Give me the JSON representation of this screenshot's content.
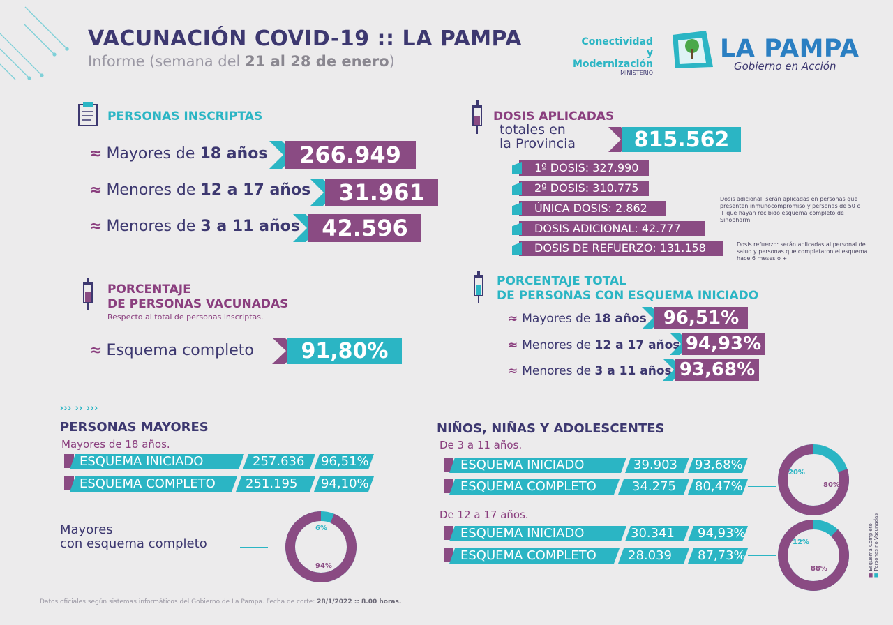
{
  "header": {
    "title": "VACUNACIÓN COVID-19 :: LA PAMPA",
    "subtitle_prefix": "Informe (semana del ",
    "subtitle_dates": "21 al 28 de enero",
    "subtitle_suffix": ")",
    "ministry_line1": "Conectividad y",
    "ministry_line2": "Modernización",
    "ministry_line3": "MINISTERIO",
    "brand": "LA PAMPA",
    "brand_tagline": "Gobierno en Acción"
  },
  "inscriptas": {
    "title": "PERSONAS INSCRIPTAS",
    "rows": [
      {
        "label_pre": "Mayores de ",
        "label_bold": "18 años",
        "value": "266.949"
      },
      {
        "label_pre": "Menores de ",
        "label_bold": "12 a 17 años",
        "value": "31.961"
      },
      {
        "label_pre": "Menores de ",
        "label_bold": "3 a 11 años",
        "value": "42.596"
      }
    ]
  },
  "dosis": {
    "title": "DOSIS APLICADAS",
    "sub1": "totales en",
    "sub2": "la Provincia",
    "total": "815.562",
    "items": [
      "1º DOSIS: 327.990",
      "2º DOSIS: 310.775",
      "ÚNICA DOSIS: 2.862",
      "DOSIS ADICIONAL: 42.777",
      "DOSIS DE REFUERZO: 131.158"
    ],
    "note_adicional": "Dosis adicional: serán aplicadas en personas que presenten inmunocompromiso y personas de 50 o + que hayan recibido esquema completo de Sinopharm.",
    "note_refuerzo": "Dosis refuerzo: serán aplicadas al personal de salud y personas que completaron el esquema hace 6 meses o +."
  },
  "porcentaje_vacunadas": {
    "title1": "PORCENTAJE",
    "title2": "DE PERSONAS VACUNADAS",
    "subtitle": "Respecto al total de personas inscriptas.",
    "label": "Esquema completo",
    "value": "91,80%"
  },
  "porcentaje_iniciado": {
    "title1": "PORCENTAJE TOTAL",
    "title2": "DE PERSONAS CON ESQUEMA INICIADO",
    "rows": [
      {
        "label_pre": "Mayores de ",
        "label_bold": "18 años",
        "value": "96,51%"
      },
      {
        "label_pre": "Menores de ",
        "label_bold": "12 a 17 años",
        "value": "94,93%"
      },
      {
        "label_pre": "Menores de ",
        "label_bold": "3 a 11 años",
        "value": "93,68%"
      }
    ]
  },
  "arrows": "››› ›› ›››",
  "mayores": {
    "title": "PERSONAS MAYORES",
    "subtitle": "Mayores de 18 años.",
    "rows": [
      {
        "label": "ESQUEMA INICIADO",
        "count": "257.636",
        "pct": "96,51%"
      },
      {
        "label": "ESQUEMA COMPLETO",
        "count": "251.195",
        "pct": "94,10%"
      }
    ],
    "donut_label1": "Mayores",
    "donut_label2": "con esquema completo",
    "donut": {
      "small": "6%",
      "large": "94%",
      "fraction": 0.94
    }
  },
  "ninos": {
    "title": "NIÑOS, NIÑAS Y ADOLESCENTES",
    "group1": {
      "subtitle": "De 3 a 11 años.",
      "rows": [
        {
          "label": "ESQUEMA INICIADO",
          "count": "39.903",
          "pct": "93,68%"
        },
        {
          "label": "ESQUEMA COMPLETO",
          "count": "34.275",
          "pct": "80,47%"
        }
      ],
      "donut": {
        "small": "20%",
        "large": "80%",
        "fraction": 0.8
      }
    },
    "group2": {
      "subtitle": "De 12 a 17 años.",
      "rows": [
        {
          "label": "ESQUEMA INICIADO",
          "count": "30.341",
          "pct": "94,93%"
        },
        {
          "label": "ESQUEMA COMPLETO",
          "count": "28.039",
          "pct": "87,73%"
        }
      ],
      "donut": {
        "small": "12%",
        "large": "88%",
        "fraction": 0.88
      }
    }
  },
  "legend": {
    "completo": "Esquema Completo",
    "no_vacunadas": "Personas no Vacunadas"
  },
  "footer": {
    "text": "Datos oficiales según sistemas informáticos del Gobierno de La Pampa. Fecha de corte: ",
    "bold": "28/1/2022 :: 8.00 horas."
  },
  "colors": {
    "purple": "#8a4b83",
    "teal": "#2bb5c4",
    "navy": "#3d3870",
    "bg": "#ecebec"
  }
}
